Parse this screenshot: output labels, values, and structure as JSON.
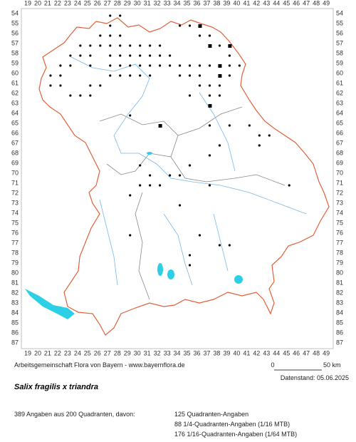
{
  "map": {
    "columns": [
      19,
      20,
      21,
      22,
      23,
      24,
      25,
      26,
      27,
      28,
      29,
      30,
      31,
      32,
      33,
      34,
      35,
      36,
      37,
      38,
      39,
      40,
      41,
      42,
      43,
      44,
      45,
      46,
      47,
      48,
      49
    ],
    "rows": [
      54,
      55,
      56,
      57,
      58,
      59,
      60,
      61,
      62,
      63,
      64,
      65,
      66,
      67,
      68,
      69,
      70,
      71,
      72,
      73,
      74,
      75,
      76,
      77,
      78,
      79,
      80,
      81,
      82,
      83,
      84,
      85,
      86,
      87
    ],
    "credit": "Arbeitsgemeinschaft Flora von Bayern - www.bayernflora.de",
    "scale_start": "0",
    "scale_end": "50 km",
    "date": "Datenstand: 05.06.2025",
    "title": "Salix fragilis x triandra",
    "summary": "389 Angaben aus 200 Quadranten, davon:",
    "counts": [
      "125 Quadranten-Angaben",
      "88 1/4-Quadranten-Angaben (1/16 MTB)",
      "176 1/16-Quadranten-Angaben (1/64 MTB)"
    ]
  }
}
